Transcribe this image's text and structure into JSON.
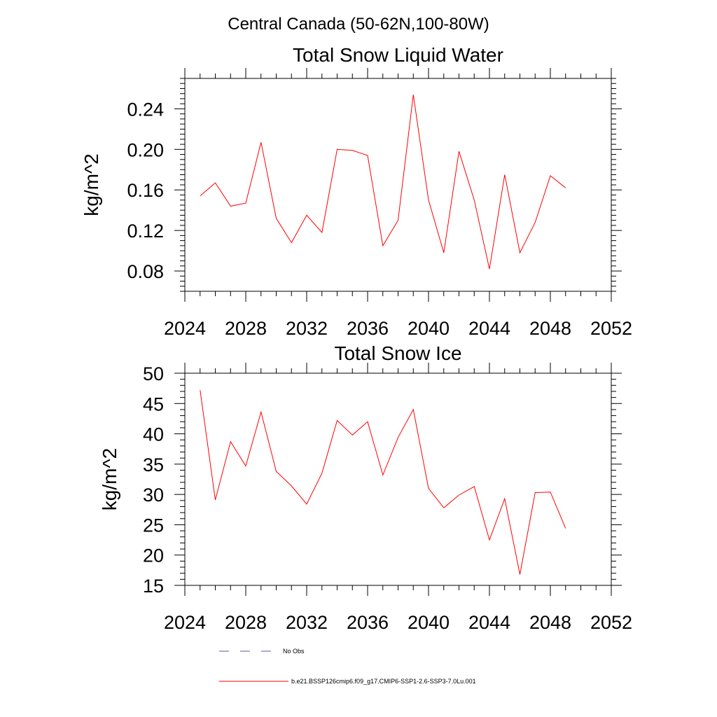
{
  "figure_title": "Central Canada (50-62N,100-80W)",
  "chart_data": [
    {
      "type": "line",
      "title": "Total Snow Liquid Water",
      "ylabel": "kg/m^2",
      "xlim": [
        2024,
        2052
      ],
      "ylim": [
        0.06,
        0.27
      ],
      "xticks": [
        2024,
        2028,
        2032,
        2036,
        2040,
        2044,
        2048,
        2052
      ],
      "yticks": [
        0.08,
        0.12,
        0.16,
        0.2,
        0.24
      ],
      "ytick_labels": [
        "0.08",
        "0.12",
        "0.16",
        "0.20",
        "0.24"
      ],
      "series": [
        {
          "name": "b.e21.BSSP126cmip6.f09_g17.CMIP6-SSP1-2.6-SSP3-7.0Lu.001",
          "color": "#ff0000",
          "x": [
            2025,
            2026,
            2027,
            2028,
            2029,
            2030,
            2031,
            2032,
            2033,
            2034,
            2035,
            2036,
            2037,
            2038,
            2039,
            2040,
            2041,
            2042,
            2043,
            2044,
            2045,
            2046,
            2047,
            2048,
            2049
          ],
          "y": [
            0.154,
            0.167,
            0.144,
            0.147,
            0.207,
            0.132,
            0.108,
            0.135,
            0.118,
            0.2,
            0.199,
            0.194,
            0.105,
            0.13,
            0.254,
            0.15,
            0.098,
            0.198,
            0.15,
            0.082,
            0.175,
            0.098,
            0.128,
            0.174,
            0.162
          ]
        }
      ]
    },
    {
      "type": "line",
      "title": "Total Snow Ice",
      "ylabel": "kg/m^2",
      "xlim": [
        2024,
        2052
      ],
      "ylim": [
        15,
        50
      ],
      "xticks": [
        2024,
        2028,
        2032,
        2036,
        2040,
        2044,
        2048,
        2052
      ],
      "yticks": [
        15,
        20,
        25,
        30,
        35,
        40,
        45,
        50
      ],
      "ytick_labels": [
        "15",
        "20",
        "25",
        "30",
        "35",
        "40",
        "45",
        "50"
      ],
      "series": [
        {
          "name": "b.e21.BSSP126cmip6.f09_g17.CMIP6-SSP1-2.6-SSP3-7.0Lu.001",
          "color": "#ff0000",
          "x": [
            2025,
            2026,
            2027,
            2028,
            2029,
            2030,
            2031,
            2032,
            2033,
            2034,
            2035,
            2036,
            2037,
            2038,
            2039,
            2040,
            2041,
            2042,
            2043,
            2044,
            2045,
            2046,
            2047,
            2048,
            2049
          ],
          "y": [
            47.2,
            29.1,
            38.7,
            34.7,
            43.6,
            33.8,
            31.4,
            28.4,
            33.5,
            42.2,
            39.8,
            42.0,
            33.2,
            39.4,
            44.0,
            31.0,
            27.8,
            29.9,
            31.3,
            22.5,
            29.3,
            16.8,
            30.3,
            30.4,
            24.4
          ]
        }
      ]
    }
  ],
  "legend": {
    "placement": "bottom",
    "items": [
      {
        "label": "No Obs",
        "color": "#5a5aa0",
        "style": "dashed"
      },
      {
        "label": "b.e21.BSSP126cmip6.f09_g17.CMIP6-SSP1-2.6-SSP3-7.0Lu.001",
        "color": "#ff0000",
        "style": "solid"
      }
    ]
  }
}
